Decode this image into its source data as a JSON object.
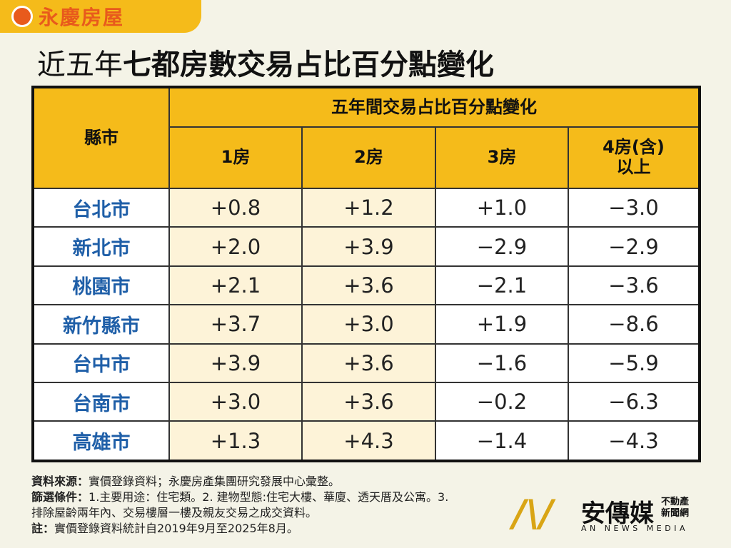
{
  "logo": "永慶房屋",
  "title": {
    "light": "近五年",
    "bold": "七都房數交易占比百分點變化"
  },
  "table": {
    "corner": "縣市",
    "group_header": "五年間交易占比百分點變化",
    "columns": [
      "1房",
      "2房",
      "3房",
      "4房(含)\n以上"
    ],
    "rows": [
      {
        "city": "台北市",
        "values": [
          "+0.8",
          "+1.2",
          "+1.0",
          "−3.0"
        ]
      },
      {
        "city": "新北市",
        "values": [
          "+2.0",
          "+3.9",
          "−2.9",
          "−2.9"
        ]
      },
      {
        "city": "桃園市",
        "values": [
          "+2.1",
          "+3.6",
          "−2.1",
          "−3.6"
        ]
      },
      {
        "city": "新竹縣市",
        "values": [
          "+3.7",
          "+3.0",
          "+1.9",
          "−8.6"
        ]
      },
      {
        "city": "台中市",
        "values": [
          "+3.9",
          "+3.6",
          "−1.6",
          "−5.9"
        ]
      },
      {
        "city": "台南市",
        "values": [
          "+3.0",
          "+3.6",
          "−0.2",
          "−6.3"
        ]
      },
      {
        "city": "高雄市",
        "values": [
          "+1.3",
          "+4.3",
          "−1.4",
          "−4.3"
        ]
      }
    ]
  },
  "footnotes": [
    {
      "label": "資料來源：",
      "text": "實價登錄資料；永慶房產集團研究發展中心彙整。"
    },
    {
      "label": "篩選條件：",
      "text": "1.主要用途：住宅類。2. 建物型態:住宅大樓、華廈、透天厝及公寓。3.\n排除屋齡兩年內、交易樓層一樓及親友交易之成交資料。"
    },
    {
      "label": "註：",
      "text": "實價登錄資料統計自2019年9月至2025年8月。"
    }
  ],
  "watermark": {
    "name": "安傳媒",
    "tag": "不動產\n新聞網",
    "sub": "AN NEWS MEDIA"
  }
}
